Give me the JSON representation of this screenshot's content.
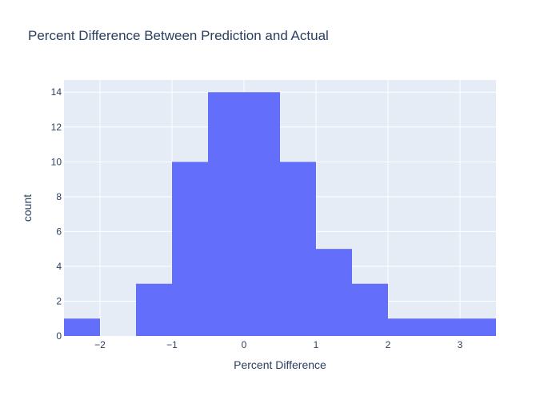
{
  "chart_data": {
    "type": "bar",
    "title": "Percent Difference Between Prediction and Actual",
    "xlabel": "Percent Difference",
    "ylabel": "count",
    "xlim": [
      -2.5,
      3.5
    ],
    "ylim": [
      0,
      14.7
    ],
    "x_ticks": [
      -2,
      -1,
      0,
      1,
      2,
      3
    ],
    "x_tick_labels": [
      "−2",
      "−1",
      "0",
      "1",
      "2",
      "3"
    ],
    "y_ticks": [
      0,
      2,
      4,
      6,
      8,
      10,
      12,
      14
    ],
    "y_tick_labels": [
      "0",
      "2",
      "4",
      "6",
      "8",
      "10",
      "12",
      "14"
    ],
    "bins": [
      {
        "x0": -2.5,
        "x1": -2.0,
        "count": 1
      },
      {
        "x0": -2.0,
        "x1": -1.5,
        "count": 0
      },
      {
        "x0": -1.5,
        "x1": -1.0,
        "count": 3
      },
      {
        "x0": -1.0,
        "x1": -0.5,
        "count": 10
      },
      {
        "x0": -0.5,
        "x1": 0.0,
        "count": 14
      },
      {
        "x0": 0.0,
        "x1": 0.5,
        "count": 14
      },
      {
        "x0": 0.5,
        "x1": 1.0,
        "count": 10
      },
      {
        "x0": 1.0,
        "x1": 1.5,
        "count": 5
      },
      {
        "x0": 1.5,
        "x1": 2.0,
        "count": 3
      },
      {
        "x0": 2.0,
        "x1": 2.5,
        "count": 1
      },
      {
        "x0": 2.5,
        "x1": 3.0,
        "count": 1
      },
      {
        "x0": 3.0,
        "x1": 3.5,
        "count": 1
      }
    ],
    "grid": true,
    "colors": {
      "bar": "#636efa",
      "plot_background": "#e5ecf6",
      "grid": "#ffffff",
      "text": "#2a3f5f"
    }
  }
}
